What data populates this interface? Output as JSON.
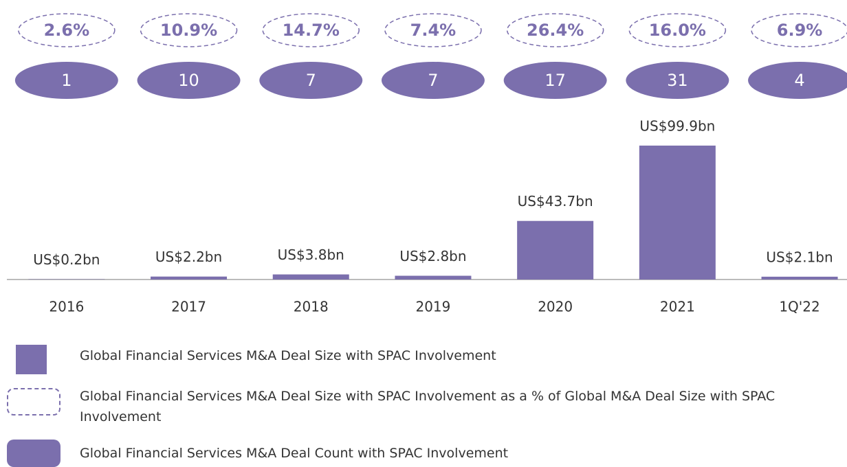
{
  "chart_data": {
    "type": "bar",
    "categories": [
      "2016",
      "2017",
      "2018",
      "2019",
      "2020",
      "2021",
      "1Q'22"
    ],
    "series": [
      {
        "name": "Global Financial Services M&A Deal Size with SPAC Involvement",
        "type": "bar",
        "color": "#7b6fad",
        "values": [
          0.2,
          2.2,
          3.8,
          2.8,
          43.7,
          99.9,
          2.1
        ],
        "value_labels": [
          "US$0.2bn",
          "US$2.2bn",
          "US$3.8bn",
          "US$2.8bn",
          "US$43.7bn",
          "US$99.9bn",
          "US$2.1bn"
        ]
      },
      {
        "name": "Global Financial Services M&A Deal Size with SPAC Involvement as a % of Global M&A Deal Size with SPAC Involvement",
        "type": "dashed-oval",
        "color": "#7b6fad",
        "values": [
          2.6,
          10.9,
          14.7,
          7.4,
          26.4,
          16.0,
          6.9
        ],
        "value_labels": [
          "2.6%",
          "10.9%",
          "14.7%",
          "7.4%",
          "26.4%",
          "16.0%",
          "6.9%"
        ]
      },
      {
        "name": "Global Financial Services M&A Deal Count with SPAC Involvement",
        "type": "oval",
        "color": "#7b6fad",
        "values": [
          1,
          10,
          7,
          7,
          17,
          31,
          4
        ]
      }
    ]
  }
}
